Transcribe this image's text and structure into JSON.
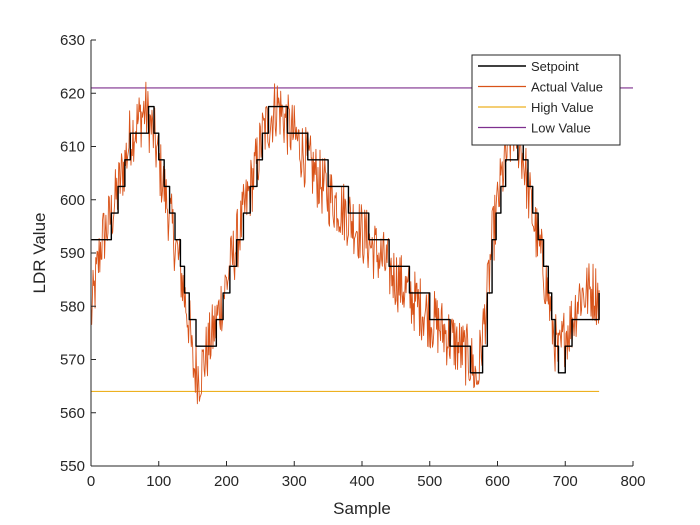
{
  "chart_data": {
    "type": "line",
    "xlabel": "Sample",
    "ylabel": "LDR Value",
    "xlim": [
      0,
      800
    ],
    "ylim": [
      550,
      630
    ],
    "xticks": [
      0,
      100,
      200,
      300,
      400,
      500,
      600,
      700,
      800
    ],
    "yticks": [
      550,
      560,
      570,
      580,
      590,
      600,
      610,
      620,
      630
    ],
    "legend_position": "top-right",
    "grid": false,
    "series": [
      {
        "name": "Setpoint",
        "color": "#000000",
        "style": "step",
        "x": [
          0,
          15,
          30,
          40,
          50,
          58,
          85,
          93,
          100,
          108,
          116,
          124,
          132,
          138,
          145,
          155,
          175,
          185,
          195,
          205,
          215,
          225,
          235,
          245,
          253,
          262,
          290,
          305,
          320,
          335,
          350,
          380,
          410,
          440,
          470,
          500,
          530,
          560,
          578,
          585,
          592,
          598,
          605,
          612,
          630,
          638,
          645,
          652,
          660,
          668,
          675,
          680,
          685,
          690,
          700,
          710,
          750
        ],
        "y": [
          592.5,
          592.5,
          597.5,
          602.5,
          607.5,
          612.5,
          617.5,
          612.5,
          607.5,
          602.5,
          597.5,
          592.5,
          587.5,
          582.5,
          577.5,
          572.5,
          572.5,
          577.5,
          582.5,
          587.5,
          592.5,
          597.5,
          602.5,
          607.5,
          612.5,
          617.5,
          612.5,
          612.5,
          607.5,
          607.5,
          602.5,
          597.5,
          592.5,
          587.5,
          582.5,
          577.5,
          572.5,
          567.5,
          572.5,
          582.5,
          592.5,
          597.5,
          602.5,
          607.5,
          612.5,
          607.5,
          602.5,
          597.5,
          592.5,
          587.5,
          582.5,
          577.5,
          572.5,
          567.5,
          572.5,
          577.5,
          582.5
        ]
      },
      {
        "name": "Actual Value",
        "color": "#D95319",
        "style": "noisy",
        "x": [
          0,
          15,
          30,
          40,
          50,
          58,
          80,
          93,
          100,
          108,
          116,
          124,
          132,
          138,
          145,
          150,
          160,
          175,
          185,
          195,
          205,
          215,
          225,
          235,
          245,
          253,
          275,
          290,
          305,
          320,
          335,
          350,
          380,
          410,
          440,
          470,
          500,
          530,
          560,
          570,
          585,
          592,
          598,
          605,
          612,
          625,
          638,
          645,
          652,
          660,
          668,
          675,
          680,
          690,
          700,
          710,
          720,
          740,
          750
        ],
        "y": [
          578,
          592,
          597,
          602,
          607,
          612,
          617,
          612,
          607,
          602,
          597,
          592,
          587,
          582,
          577,
          569,
          567,
          573,
          577,
          582,
          587,
          592,
          597,
          602,
          607,
          612,
          618,
          614,
          611,
          607,
          604,
          601,
          597,
          592,
          587,
          582,
          578,
          574,
          570,
          566,
          582,
          592,
          597,
          603,
          608,
          614,
          608,
          602,
          597,
          592,
          587,
          582,
          577,
          570,
          575,
          577,
          582,
          583,
          582
        ],
        "noise_amplitude": 6,
        "min": 559,
        "max": 624
      },
      {
        "name": "High Value",
        "color": "#EDB120",
        "style": "constant",
        "x": [
          0,
          750
        ],
        "y": [
          564,
          564
        ]
      },
      {
        "name": "Low Value",
        "color": "#7E2F8E",
        "style": "constant",
        "x": [
          0,
          800
        ],
        "y": [
          621,
          621
        ]
      }
    ]
  }
}
